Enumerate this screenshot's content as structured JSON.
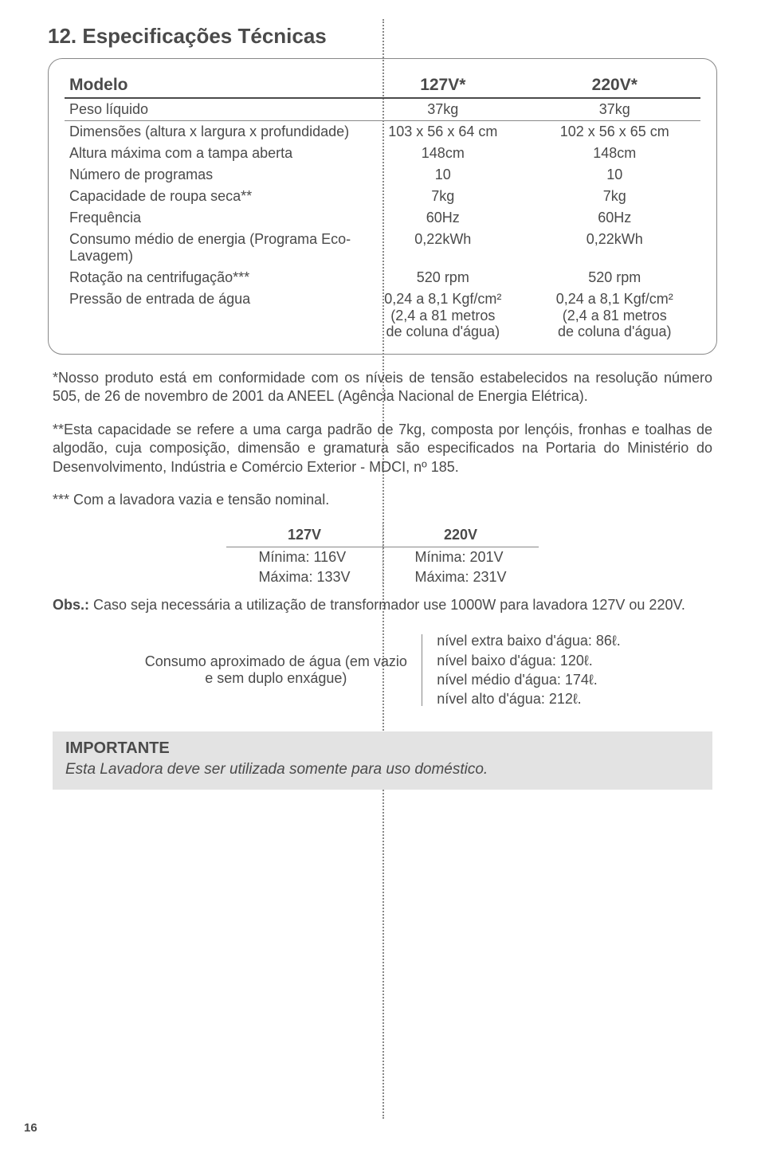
{
  "page_number": "16",
  "section_title": "12. Especificações Técnicas",
  "spec_table": {
    "header_label": "Modelo",
    "col1": "127V*",
    "col2": "220V*",
    "rows": [
      {
        "label": "Peso líquido",
        "v1": "37kg",
        "v2": "37kg"
      },
      {
        "label": "Dimensões (altura x largura x profundidade)",
        "v1": "103 x 56 x 64 cm",
        "v2": "102 x 56 x 65 cm"
      },
      {
        "label": "Altura máxima com a tampa aberta",
        "v1": "148cm",
        "v2": "148cm"
      },
      {
        "label": "Número de programas",
        "v1": "10",
        "v2": "10"
      },
      {
        "label": "Capacidade de roupa seca**",
        "v1": "7kg",
        "v2": "7kg"
      },
      {
        "label": "Frequência",
        "v1": "60Hz",
        "v2": "60Hz"
      },
      {
        "label": "Consumo médio de energia (Programa Eco-Lavagem)",
        "v1": "0,22kWh",
        "v2": "0,22kWh"
      },
      {
        "label": "Rotação na centrifugação***",
        "v1": "520 rpm",
        "v2": "520 rpm"
      },
      {
        "label": "Pressão de entrada de água",
        "v1": "0,24 a 8,1 Kgf/cm²\n(2,4 a 81 metros\nde coluna d'água)",
        "v2": "0,24 a 8,1 Kgf/cm²\n(2,4 a 81 metros\nde coluna d'água)"
      }
    ]
  },
  "notes": {
    "n1": "*Nosso produto está em conformidade com os níveis de tensão estabelecidos na resolução número 505, de 26 de novembro de 2001 da ANEEL (Agência Nacional de Energia Elétrica).",
    "n2": "**Esta capacidade se refere a uma carga padrão de 7kg, composta por lençóis, fronhas e toalhas de algodão, cuja composição, dimensão e gramatura são especificados na Portaria do Ministério do Desenvolvimento, Indústria e Comércio Exterior - MDCI, nº 185.",
    "n3": "*** Com a lavadora vazia e tensão nominal."
  },
  "voltage_table": {
    "col1": "127V",
    "col2": "220V",
    "r1c1": "Mínima: 116V",
    "r1c2": "Mínima: 201V",
    "r2c1": "Máxima: 133V",
    "r2c2": "Máxima: 231V"
  },
  "obs": "Obs.: Caso seja necessária a utilização de transformador use 1000W para lavadora 127V ou 220V.",
  "water": {
    "label": "Consumo aproximado de água (em vazio e sem duplo enxágue)",
    "levels": [
      "nível extra baixo d'água: 86ℓ.",
      "nível baixo d'água: 120ℓ.",
      "nível médio d'água: 174ℓ.",
      "nível alto d'água: 212ℓ."
    ]
  },
  "important": {
    "heading": "IMPORTANTE",
    "body": "Esta Lavadora deve ser utilizada somente para uso doméstico."
  }
}
